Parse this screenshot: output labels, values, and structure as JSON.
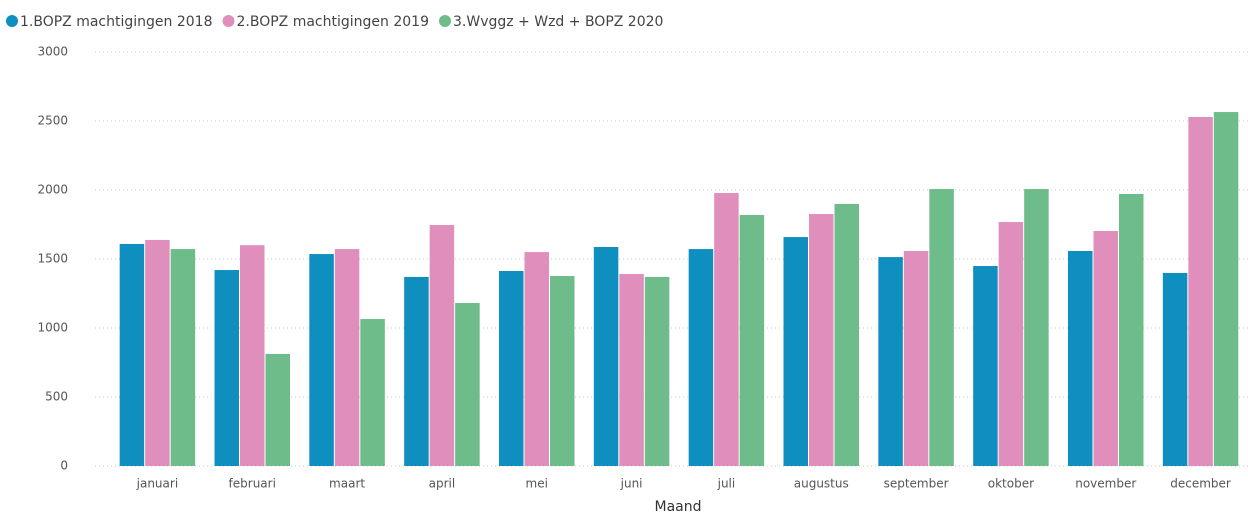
{
  "chart_data": {
    "type": "bar",
    "x_label": "Maand",
    "categories": [
      "januari",
      "februari",
      "maart",
      "april",
      "mei",
      "juni",
      "juli",
      "augustus",
      "september",
      "oktober",
      "november",
      "december"
    ],
    "series": [
      {
        "name": "1.BOPZ machtigingen 2018",
        "color": "#0f8fbf",
        "values": [
          1609,
          1420,
          1536,
          1370,
          1413,
          1587,
          1572,
          1659,
          1514,
          1449,
          1558,
          1399
        ]
      },
      {
        "name": "2.BOPZ machtigingen 2019",
        "color": "#e08ebc",
        "values": [
          1638,
          1600,
          1572,
          1746,
          1550,
          1391,
          1978,
          1826,
          1558,
          1768,
          1703,
          2529
        ]
      },
      {
        "name": "3.Wvggz + Wzd + BOPZ 2020",
        "color": "#6fbc8b",
        "values": [
          1572,
          812,
          1065,
          1181,
          1377,
          1370,
          1819,
          1899,
          2007,
          2007,
          1971,
          2565
        ]
      }
    ],
    "ylim": [
      0,
      3000
    ],
    "yticks": [
      0,
      500,
      1000,
      1500,
      2000,
      2500,
      3000
    ],
    "grid": true,
    "legend": "top-left"
  }
}
